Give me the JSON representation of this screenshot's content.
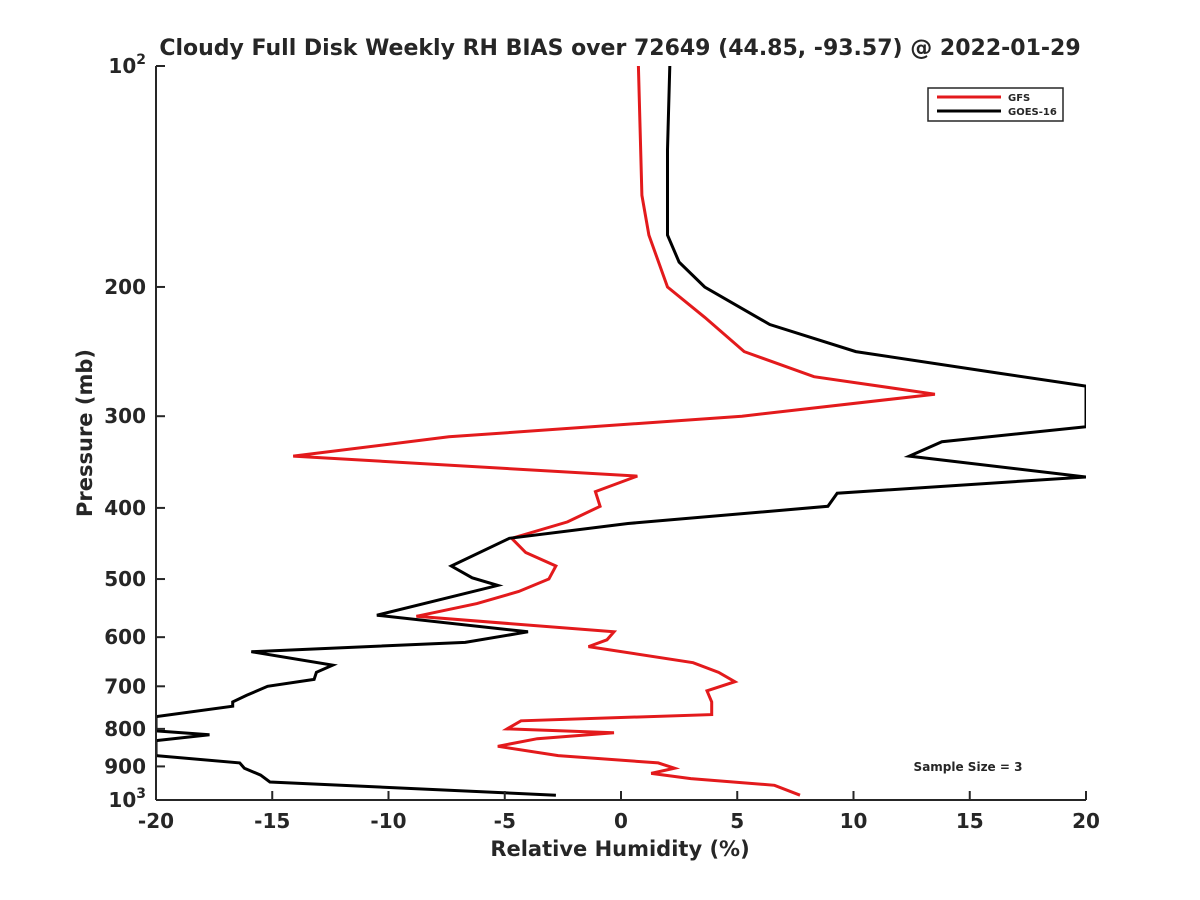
{
  "chart_data": {
    "type": "line",
    "title": "Cloudy Full Disk Weekly RH BIAS over 72649 (44.85, -93.57) @ 2022-01-29",
    "xlabel": "Relative Humidity (%)",
    "ylabel": "Pressure (mb)",
    "xlim": [
      -20,
      20
    ],
    "ylim": [
      100,
      1000
    ],
    "y_scale": "log",
    "y_reversed": true,
    "grid": false,
    "legend_position": "top-right",
    "annotation": "Sample Size = 3",
    "x_ticks": [
      -20,
      -15,
      -10,
      -5,
      0,
      5,
      10,
      15,
      20
    ],
    "x_tick_labels": [
      "-20",
      "-15",
      "-10",
      "-5",
      "0",
      "5",
      "10",
      "15",
      "20"
    ],
    "y_ticks": [
      100,
      200,
      300,
      400,
      500,
      600,
      700,
      800,
      900,
      1000
    ],
    "y_tick_labels": [
      "10^2",
      "200",
      "300",
      "400",
      "500",
      "600",
      "700",
      "800",
      "900",
      "10^3"
    ],
    "series": [
      {
        "name": "GFS",
        "color": "#e31a1c",
        "points": [
          [
            0.75,
            100
          ],
          [
            0.9,
            150
          ],
          [
            1.2,
            170
          ],
          [
            2.0,
            200
          ],
          [
            3.6,
            220
          ],
          [
            5.3,
            245
          ],
          [
            8.3,
            265
          ],
          [
            13.5,
            280
          ],
          [
            5.2,
            300
          ],
          [
            -7.4,
            320
          ],
          [
            -14.1,
            340
          ],
          [
            0.7,
            362
          ],
          [
            -1.1,
            380
          ],
          [
            -0.9,
            398
          ],
          [
            -2.3,
            418
          ],
          [
            -4.7,
            440
          ],
          [
            -4.1,
            460
          ],
          [
            -2.8,
            480
          ],
          [
            -3.1,
            500
          ],
          [
            -4.4,
            520
          ],
          [
            -6.2,
            540
          ],
          [
            -8.8,
            562
          ],
          [
            -0.3,
            590
          ],
          [
            -0.6,
            605
          ],
          [
            -1.4,
            618
          ],
          [
            3.1,
            650
          ],
          [
            4.2,
            670
          ],
          [
            4.9,
            690
          ],
          [
            3.7,
            710
          ],
          [
            3.9,
            735
          ],
          [
            3.9,
            765
          ],
          [
            -4.3,
            780
          ],
          [
            -4.9,
            800
          ],
          [
            -0.3,
            810
          ],
          [
            -3.6,
            825
          ],
          [
            -5.3,
            845
          ],
          [
            -2.7,
            870
          ],
          [
            1.6,
            890
          ],
          [
            2.3,
            905
          ],
          [
            1.3,
            920
          ],
          [
            3.0,
            935
          ],
          [
            6.6,
            955
          ],
          [
            7.7,
            985
          ]
        ]
      },
      {
        "name": "GOES-16",
        "color": "#000000",
        "points": [
          [
            2.1,
            100
          ],
          [
            2.0,
            130
          ],
          [
            2.0,
            170
          ],
          [
            2.5,
            185
          ],
          [
            3.6,
            200
          ],
          [
            6.4,
            225
          ],
          [
            10.1,
            245
          ],
          [
            16.2,
            262
          ],
          [
            20.0,
            273
          ],
          [
            20.0,
            310
          ],
          [
            13.8,
            325
          ],
          [
            12.4,
            340
          ],
          [
            20.0,
            363
          ],
          [
            9.3,
            382
          ],
          [
            8.9,
            398
          ],
          [
            0.3,
            420
          ],
          [
            -4.8,
            440
          ],
          [
            -7.3,
            480
          ],
          [
            -6.4,
            498
          ],
          [
            -5.3,
            510
          ],
          [
            -10.5,
            560
          ],
          [
            -4.0,
            590
          ],
          [
            -6.7,
            610
          ],
          [
            -15.9,
            628
          ],
          [
            -12.4,
            655
          ],
          [
            -13.1,
            670
          ],
          [
            -13.2,
            685
          ],
          [
            -15.2,
            700
          ],
          [
            -16.1,
            720
          ],
          [
            -16.7,
            735
          ],
          [
            -16.7,
            745
          ],
          [
            -20.0,
            770
          ],
          [
            -20.0,
            805
          ],
          [
            -17.7,
            815
          ],
          [
            -20.0,
            830
          ],
          [
            -20.0,
            870
          ],
          [
            -16.4,
            890
          ],
          [
            -16.2,
            905
          ],
          [
            -15.5,
            925
          ],
          [
            -15.1,
            945
          ],
          [
            -2.8,
            985
          ]
        ]
      }
    ]
  }
}
